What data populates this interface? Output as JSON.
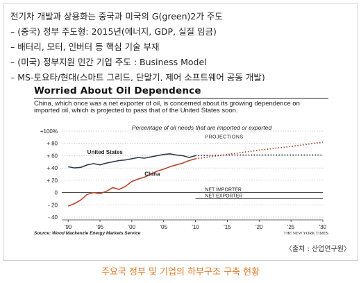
{
  "bullets": [
    "전기차 개발과 상용화는 중국과 미국의 G(green)2가 주도",
    "– (중국) 정부 주도형: 2015년(에너지, GDP, 실질 임금)",
    "– 배터리, 모터, 인버터 등 핵심 기술 부재",
    "– (미국) 정부지원 민간 기업 주도 :  Business Model",
    "– MS-토요타/현대(스마트 그리드, 단말기, 제어 소프트웨어 공동 개발)"
  ],
  "clipping": {
    "title": "Worried About Oil Dependence",
    "subtitle": "China, which once was a net exporter of oil, is concerned about its growing dependence on imported oil, which is projected to pass that of the United States soon.",
    "source": "Source: Wood Mackenzie Energy Markets Service",
    "credit": "THE NEW YORK TIMES"
  },
  "source_tag": "〈출처 : 산업연구원〉",
  "caption": "주요국 정부 및 기업의 하부구조 구축 현황",
  "colors": {
    "caption": "#e07a2a",
    "china": "#b8442e",
    "united_states": "#2b3a4a"
  },
  "chart_data": {
    "type": "line",
    "title": "Percentage of oil needs that are imported or exported",
    "xlim": [
      1989,
      2030
    ],
    "ylim": [
      -40,
      100
    ],
    "x_ticks": [
      1990,
      1995,
      2000,
      2005,
      2010,
      2015,
      2020,
      2025,
      2030
    ],
    "x_tick_labels": [
      "'90",
      "'95",
      "'00",
      "'05",
      "'10",
      "'15",
      "'20",
      "'25",
      "'30"
    ],
    "y_ticks": [
      100,
      80,
      60,
      40,
      20,
      0,
      -20,
      -40
    ],
    "y_tick_labels": [
      "+100%",
      "+ 80",
      "+ 60",
      "+ 40",
      "+ 20",
      "0",
      "- 20",
      "- 40"
    ],
    "annotations": {
      "projections": "PROJECTIONS",
      "net_importer": "NET IMPORTER",
      "net_exporter": "NET EXPORTER"
    },
    "grid": true,
    "series": [
      {
        "name": "United States",
        "x": [
          1990,
          1991,
          1992,
          1993,
          1994,
          1995,
          1996,
          1997,
          1998,
          1999,
          2000,
          2001,
          2002,
          2003,
          2004,
          2005,
          2006,
          2007,
          2008,
          2009,
          2010
        ],
        "values": [
          42,
          40,
          41,
          45,
          47,
          45,
          48,
          50,
          52,
          53,
          55,
          57,
          56,
          58,
          60,
          62,
          63,
          61,
          60,
          57,
          60
        ]
      },
      {
        "name": "United States (projection)",
        "x": [
          2010,
          2015,
          2020,
          2025,
          2030
        ],
        "values": [
          60,
          61,
          61,
          61,
          61
        ]
      },
      {
        "name": "China",
        "x": [
          1990,
          1991,
          1992,
          1993,
          1994,
          1995,
          1996,
          1997,
          1998,
          1999,
          2000,
          2001,
          2002,
          2003,
          2004,
          2005,
          2006,
          2007,
          2008,
          2009,
          2010
        ],
        "values": [
          -22,
          -18,
          -12,
          -3,
          0,
          -2,
          2,
          8,
          5,
          10,
          18,
          22,
          25,
          30,
          35,
          38,
          42,
          45,
          48,
          52,
          55
        ]
      },
      {
        "name": "China (projection)",
        "x": [
          2010,
          2015,
          2020,
          2025,
          2030
        ],
        "values": [
          55,
          62,
          69,
          75,
          82
        ]
      }
    ]
  }
}
